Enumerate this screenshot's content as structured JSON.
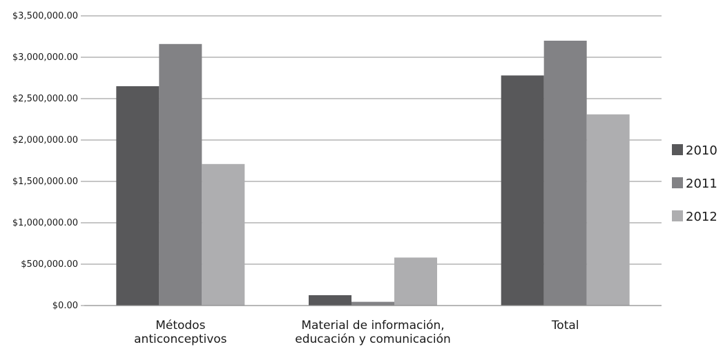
{
  "chart_data": {
    "type": "bar",
    "categories": [
      [
        "Métodos",
        "anticonceptivos"
      ],
      [
        "Material de información,",
        "educación y comunicación"
      ],
      [
        "Total"
      ]
    ],
    "series": [
      {
        "name": "2010",
        "color": "#58585a",
        "values": [
          2650000,
          125000,
          2780000
        ]
      },
      {
        "name": "2011",
        "color": "#828285",
        "values": [
          3160000,
          45000,
          3200000
        ]
      },
      {
        "name": "2012",
        "color": "#aeaeb0",
        "values": [
          1710000,
          580000,
          2310000
        ]
      }
    ],
    "yticks": [
      "$0.00",
      "$500,000.00",
      "$1,000,000.00",
      "$1,500,000.00",
      "$2,000,000.00",
      "$2,500,000.00",
      "$3,000,000.00",
      "$3,500,000.00"
    ],
    "ylim": [
      0,
      3500000
    ],
    "grid": true,
    "legend_position": "right"
  }
}
